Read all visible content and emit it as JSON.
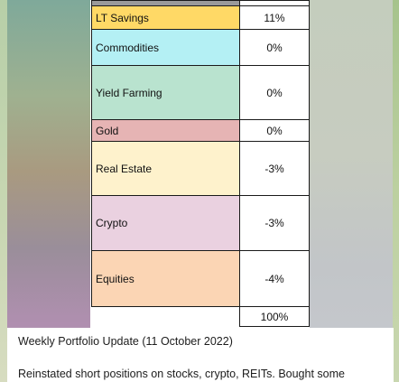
{
  "allocation_table": {
    "rows": [
      {
        "name": "LT Savings",
        "pct": "11%",
        "color": "#ffd966"
      },
      {
        "name": "Commodities",
        "pct": "0%",
        "color": "#b4f0f4"
      },
      {
        "name": "Yield Farming",
        "pct": "0%",
        "color": "#b9e3cf"
      },
      {
        "name": "Gold",
        "pct": "0%",
        "color": "#e6b4b4"
      },
      {
        "name": "Real Estate",
        "pct": "-3%",
        "color": "#fef2cc"
      },
      {
        "name": "Crypto",
        "pct": "-3%",
        "color": "#ead1e0"
      },
      {
        "name": "Equities",
        "pct": "-4%",
        "color": "#fbd5b4"
      }
    ],
    "total": "100%"
  },
  "message": {
    "title": "Weekly Portfolio Update (11 October 2022)",
    "body": "Reinstated short positions on stocks, crypto, REITs. Bought some"
  }
}
